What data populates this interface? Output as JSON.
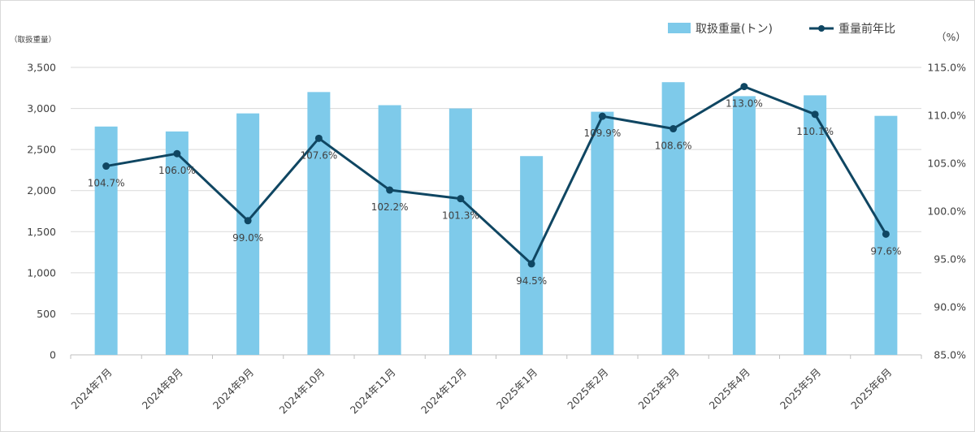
{
  "chart_data": {
    "type": "bar+line",
    "categories": [
      "2024年7月",
      "2024年8月",
      "2024年9月",
      "2024年10月",
      "2024年11月",
      "2024年12月",
      "2025年1月",
      "2025年2月",
      "2025年3月",
      "2025年4月",
      "2025年5月",
      "2025年6月"
    ],
    "series": [
      {
        "name": "取扱重量(トン)",
        "type": "bar",
        "axis": "left",
        "color": "#7ecaea",
        "values": [
          2780,
          2720,
          2940,
          3200,
          3040,
          3000,
          2420,
          2960,
          3320,
          3150,
          3160,
          2910
        ]
      },
      {
        "name": "重量前年比",
        "type": "line",
        "axis": "right",
        "color": "#0f4662",
        "values": [
          104.7,
          106.0,
          99.0,
          107.6,
          102.2,
          101.3,
          94.5,
          109.9,
          108.6,
          113.0,
          110.1,
          97.6
        ],
        "labels": [
          "104.7%",
          "106.0%",
          "99.0%",
          "107.6%",
          "102.2%",
          "101.3%",
          "94.5%",
          "109.9%",
          "108.6%",
          "113.0%",
          "110.1%",
          "97.6%"
        ]
      }
    ],
    "y_left": {
      "unit_label": "（取扱重量）",
      "min": 0,
      "max": 3500,
      "ticks": [
        0,
        500,
        1000,
        1500,
        2000,
        2500,
        3000,
        3500
      ],
      "tick_labels": [
        "0",
        "500",
        "1,000",
        "1,500",
        "2,000",
        "2,500",
        "3,000",
        "3,500"
      ]
    },
    "y_right": {
      "unit_label": "（%）",
      "min": 85,
      "max": 115,
      "ticks": [
        85,
        90,
        95,
        100,
        105,
        110,
        115
      ],
      "tick_labels": [
        "85.0%",
        "90.0%",
        "95.0%",
        "100.0%",
        "105.0%",
        "110.0%",
        "115.0%"
      ]
    },
    "grid": true,
    "legend_position": "top-right",
    "gridline_color": "#d9d9d9"
  }
}
